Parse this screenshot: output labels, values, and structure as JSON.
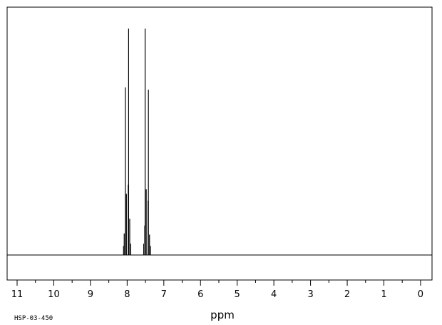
{
  "chart_data": {
    "type": "line",
    "title": "",
    "xlabel": "ppm",
    "ylabel": "",
    "xlim": [
      11.0,
      -0.3
    ],
    "x_reversed": true,
    "grid": false,
    "ticks": [
      11,
      10,
      9,
      8,
      7,
      6,
      5,
      4,
      3,
      2,
      1,
      0
    ],
    "tick_labels": [
      "11",
      "10",
      "9",
      "8",
      "7",
      "6",
      "5",
      "4",
      "3",
      "2",
      "1",
      "0"
    ],
    "minor_tick_step": 0.5,
    "spectrum_id": "HSP-03-450",
    "series": [
      {
        "peaks": [
          {
            "x": 8.08,
            "y": 0.095
          },
          {
            "x": 8.05,
            "y": 0.74
          },
          {
            "x": 8.02,
            "y": 0.27
          },
          {
            "x": 7.97,
            "y": 0.31
          },
          {
            "x": 7.96,
            "y": 1.0
          },
          {
            "x": 7.93,
            "y": 0.16
          },
          {
            "x": 7.52,
            "y": 0.13
          },
          {
            "x": 7.51,
            "y": 1.0
          },
          {
            "x": 7.48,
            "y": 0.29
          },
          {
            "x": 7.43,
            "y": 0.24
          },
          {
            "x": 7.42,
            "y": 0.73
          },
          {
            "x": 7.39,
            "y": 0.09
          }
        ]
      }
    ]
  }
}
